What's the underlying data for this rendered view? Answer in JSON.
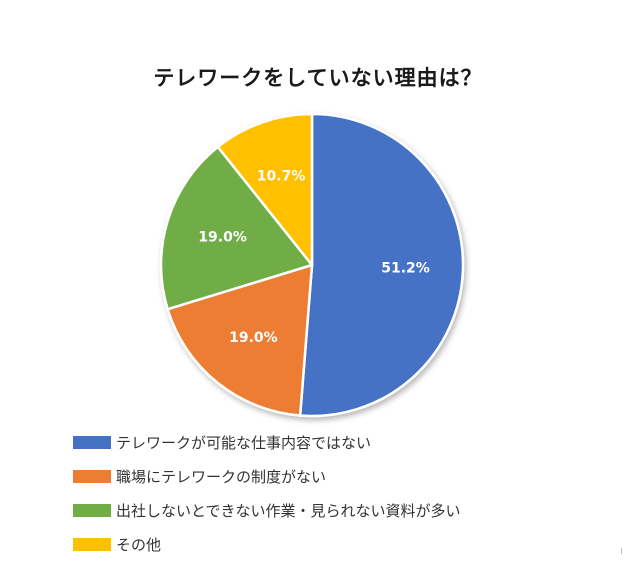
{
  "chart_data": {
    "type": "pie",
    "title": "テレワークをしていない理由は？",
    "slices": [
      {
        "label": "テレワークが可能な仕事内容ではない",
        "value": 51.2,
        "display": "51.2%",
        "color": "#4472C4"
      },
      {
        "label": "職場にテレワークの制度がない",
        "value": 19.0,
        "display": "19.0%",
        "color": "#ED7D31"
      },
      {
        "label": "出社しないとできない作業・見られない資料が多い",
        "value": 19.0,
        "display": "19.0%",
        "color": "#70AD47"
      },
      {
        "label": "その他",
        "value": 10.7,
        "display": "10.7%",
        "color": "#FFC000"
      }
    ],
    "legend_position": "bottom-left"
  }
}
